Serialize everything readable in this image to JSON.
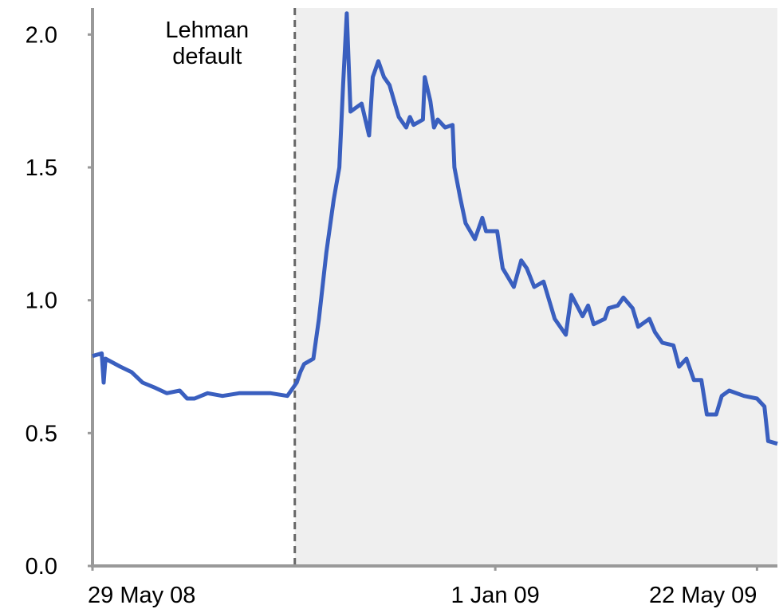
{
  "chart_data": {
    "type": "line",
    "x": [
      "2008-05-29",
      "2008-06-03",
      "2008-06-04",
      "2008-06-05",
      "2008-06-13",
      "2008-06-19",
      "2008-06-25",
      "2008-07-02",
      "2008-07-08",
      "2008-07-15",
      "2008-07-19",
      "2008-07-23",
      "2008-07-30",
      "2008-08-07",
      "2008-08-16",
      "2008-08-25",
      "2008-09-02",
      "2008-09-11",
      "2008-09-16",
      "2008-09-18",
      "2008-09-20",
      "2008-09-25",
      "2008-09-28",
      "2008-10-02",
      "2008-10-06",
      "2008-10-09",
      "2008-10-11",
      "2008-10-13",
      "2008-10-15",
      "2008-10-21",
      "2008-10-25",
      "2008-10-27",
      "2008-10-30",
      "2008-11-02",
      "2008-11-05",
      "2008-11-10",
      "2008-11-14",
      "2008-11-16",
      "2008-11-18",
      "2008-11-23",
      "2008-11-24",
      "2008-11-27",
      "2008-11-29",
      "2008-12-01",
      "2008-12-05",
      "2008-12-09",
      "2008-12-10",
      "2008-12-13",
      "2008-12-16",
      "2008-12-21",
      "2008-12-25",
      "2008-12-27",
      "2009-01-02",
      "2009-01-05",
      "2009-01-11",
      "2009-01-15",
      "2009-01-18",
      "2009-01-22",
      "2009-01-27",
      "2009-02-02",
      "2009-02-08",
      "2009-02-11",
      "2009-02-17",
      "2009-02-20",
      "2009-02-23",
      "2009-03-01",
      "2009-03-03",
      "2009-03-08",
      "2009-03-11",
      "2009-03-16",
      "2009-03-19",
      "2009-03-25",
      "2009-03-28",
      "2009-04-01",
      "2009-04-07",
      "2009-04-10",
      "2009-04-14",
      "2009-04-18",
      "2009-04-22",
      "2009-04-25",
      "2009-04-30",
      "2009-05-03",
      "2009-05-07",
      "2009-05-15",
      "2009-05-22",
      "2009-05-26",
      "2009-05-28",
      "2009-06-02"
    ],
    "values": [
      0.79,
      0.8,
      0.69,
      0.78,
      0.75,
      0.73,
      0.69,
      0.67,
      0.65,
      0.66,
      0.63,
      0.63,
      0.65,
      0.64,
      0.65,
      0.65,
      0.65,
      0.64,
      0.69,
      0.73,
      0.76,
      0.78,
      0.93,
      1.18,
      1.38,
      1.5,
      1.81,
      2.08,
      1.71,
      1.74,
      1.62,
      1.84,
      1.9,
      1.84,
      1.81,
      1.69,
      1.65,
      1.69,
      1.66,
      1.68,
      1.84,
      1.75,
      1.65,
      1.68,
      1.65,
      1.66,
      1.5,
      1.39,
      1.29,
      1.23,
      1.31,
      1.26,
      1.26,
      1.12,
      1.05,
      1.15,
      1.12,
      1.05,
      1.07,
      0.93,
      0.87,
      1.02,
      0.94,
      0.98,
      0.91,
      0.93,
      0.97,
      0.98,
      1.01,
      0.97,
      0.9,
      0.93,
      0.88,
      0.84,
      0.83,
      0.75,
      0.78,
      0.7,
      0.7,
      0.57,
      0.57,
      0.64,
      0.66,
      0.64,
      0.63,
      0.6,
      0.47,
      0.46
    ],
    "color": "#3a5fbf",
    "xlim": [
      "2008-05-29",
      "2009-06-02"
    ],
    "xticks": [
      {
        "value": "2008-05-29",
        "label": "29 May 08"
      },
      {
        "value": "2009-01-01",
        "label": "1 Jan 09"
      },
      {
        "value": "2009-05-22",
        "label": "22 May 09"
      }
    ],
    "ylim": [
      0,
      2.1
    ],
    "yticks": [
      {
        "value": 0,
        "label": "0.0"
      },
      0.5,
      {
        "value": 1,
        "label": "1.0"
      },
      1.5,
      {
        "value": 2,
        "label": "2.0"
      }
    ],
    "annotation": {
      "x": "2008-09-15",
      "label": "Lehman default",
      "shade_after": true
    }
  }
}
